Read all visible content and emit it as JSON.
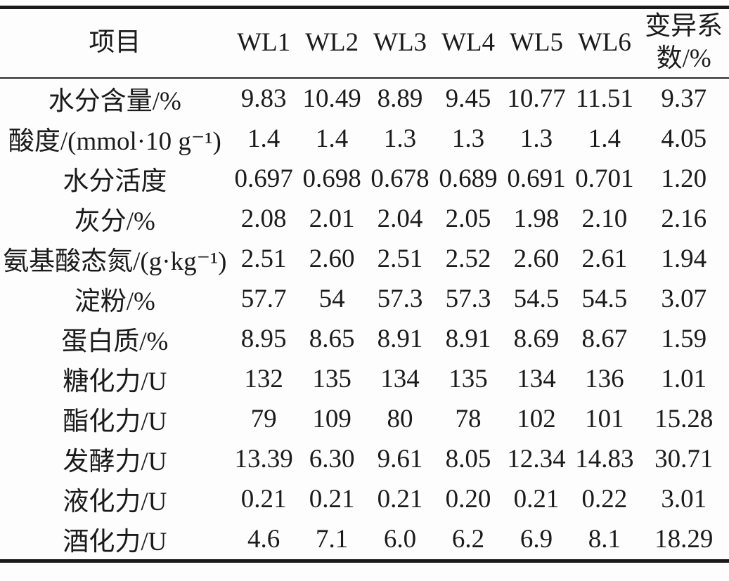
{
  "table": {
    "columns": [
      "项目",
      "WL1",
      "WL2",
      "WL3",
      "WL4",
      "WL5",
      "WL6",
      "变异系数/%"
    ],
    "rows": [
      {
        "label": "水分含量/%",
        "values": [
          "9.83",
          "10.49",
          "8.89",
          "9.45",
          "10.77",
          "11.51",
          "9.37"
        ]
      },
      {
        "label": "酸度/(mmol·10 g⁻¹)",
        "values": [
          "1.4",
          "1.4",
          "1.3",
          "1.3",
          "1.3",
          "1.4",
          "4.05"
        ]
      },
      {
        "label": "水分活度",
        "values": [
          "0.697",
          "0.698",
          "0.678",
          "0.689",
          "0.691",
          "0.701",
          "1.20"
        ]
      },
      {
        "label": "灰分/%",
        "values": [
          "2.08",
          "2.01",
          "2.04",
          "2.05",
          "1.98",
          "2.10",
          "2.16"
        ]
      },
      {
        "label": "氨基酸态氮/(g·kg⁻¹)",
        "values": [
          "2.51",
          "2.60",
          "2.51",
          "2.52",
          "2.60",
          "2.61",
          "1.94"
        ]
      },
      {
        "label": "淀粉/%",
        "values": [
          "57.7",
          "54",
          "57.3",
          "57.3",
          "54.5",
          "54.5",
          "3.07"
        ]
      },
      {
        "label": "蛋白质/%",
        "values": [
          "8.95",
          "8.65",
          "8.91",
          "8.91",
          "8.69",
          "8.67",
          "1.59"
        ]
      },
      {
        "label": "糖化力/U",
        "values": [
          "132",
          "135",
          "134",
          "135",
          "134",
          "136",
          "1.01"
        ]
      },
      {
        "label": "酯化力/U",
        "values": [
          "79",
          "109",
          "80",
          "78",
          "102",
          "101",
          "15.28"
        ]
      },
      {
        "label": "发酵力/U",
        "values": [
          "13.39",
          "6.30",
          "9.61",
          "8.05",
          "12.34",
          "14.83",
          "30.71"
        ]
      },
      {
        "label": "液化力/U",
        "values": [
          "0.21",
          "0.21",
          "0.21",
          "0.20",
          "0.21",
          "0.22",
          "3.01"
        ]
      },
      {
        "label": "酒化力/U",
        "values": [
          "4.6",
          "7.1",
          "6.0",
          "6.2",
          "6.9",
          "8.1",
          "18.29"
        ]
      }
    ]
  }
}
